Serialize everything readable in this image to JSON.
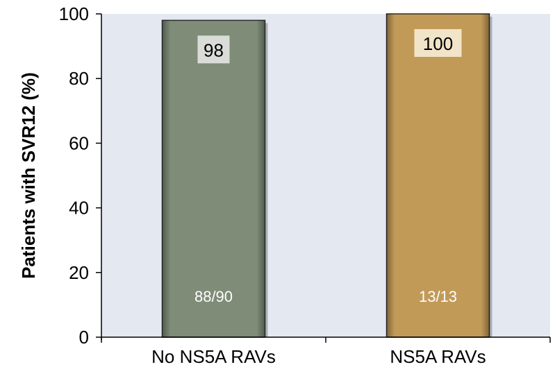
{
  "chart_data": {
    "type": "bar",
    "categories": [
      "No NS5A RAVs",
      "NS5A RAVs"
    ],
    "values": [
      98,
      100
    ],
    "value_labels": [
      "98",
      "100"
    ],
    "bar_annotations": [
      "88/90",
      "13/13"
    ],
    "ylabel": "Patients with SVR12 (%)",
    "xlabel": "",
    "ylim": [
      0,
      100
    ],
    "yticks": [
      0,
      20,
      40,
      60,
      80,
      100
    ],
    "grid": false,
    "colors": {
      "plot_background": "#E4E8F1",
      "bars": [
        "#7E8C78",
        "#C29A58"
      ],
      "value_label_box": [
        "#D9DCD7",
        "#F1E4C8"
      ]
    }
  }
}
